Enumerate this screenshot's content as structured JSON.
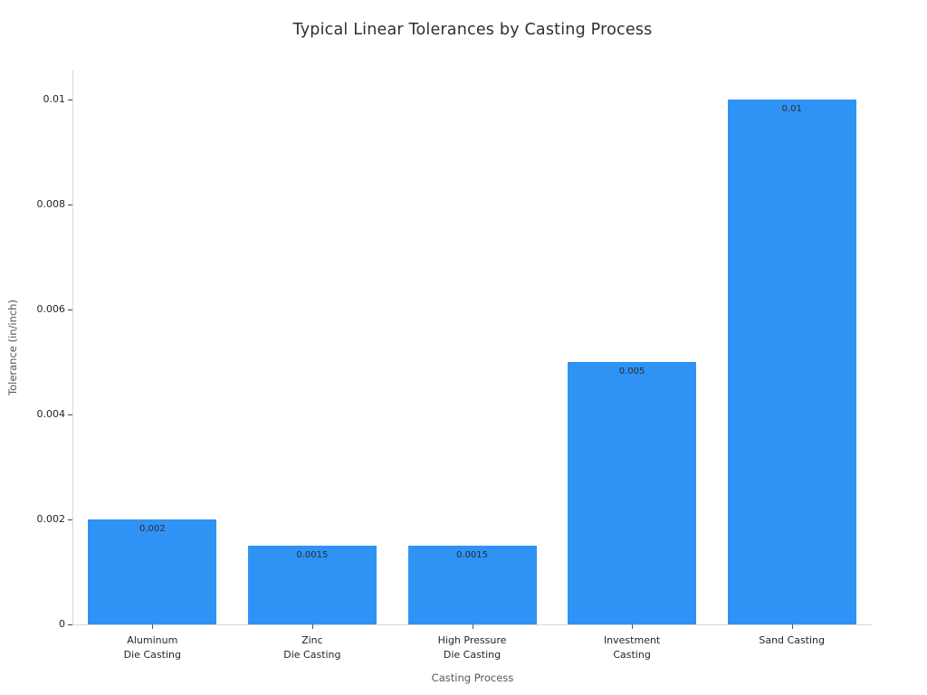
{
  "title": "Typical Linear Tolerances by Casting Process",
  "colors": {
    "bar": "#2e93f5",
    "title_text": "#2f2f2f",
    "tick_text": "#262626",
    "axis_title_text": "#575757",
    "spine": "#d8d8d8",
    "tick_mark": "#444444",
    "bar_label_text": "#2d2d2d",
    "background": "#ffffff"
  },
  "chart_data": {
    "type": "bar",
    "title": "Typical Linear Tolerances by Casting Process",
    "xlabel": "Casting Process",
    "ylabel": "Tolerance (in/inch)",
    "categories": [
      "Aluminum\nDie Casting",
      "Zinc\nDie Casting",
      "High Pressure\nDie Casting",
      "Investment\nCasting",
      "Sand Casting"
    ],
    "values": [
      0.002,
      0.0015,
      0.0015,
      0.005,
      0.01
    ],
    "bar_labels": [
      "0.002",
      "0.0015",
      "0.0015",
      "0.005",
      "0.01"
    ],
    "yticks": [
      0,
      0.002,
      0.004,
      0.006,
      0.008,
      0.01
    ],
    "ytick_labels": [
      "0",
      "0.002",
      "0.004",
      "0.006",
      "0.008",
      "0.01"
    ],
    "ylim": [
      0,
      0.01055
    ],
    "grid": false,
    "legend": null
  }
}
